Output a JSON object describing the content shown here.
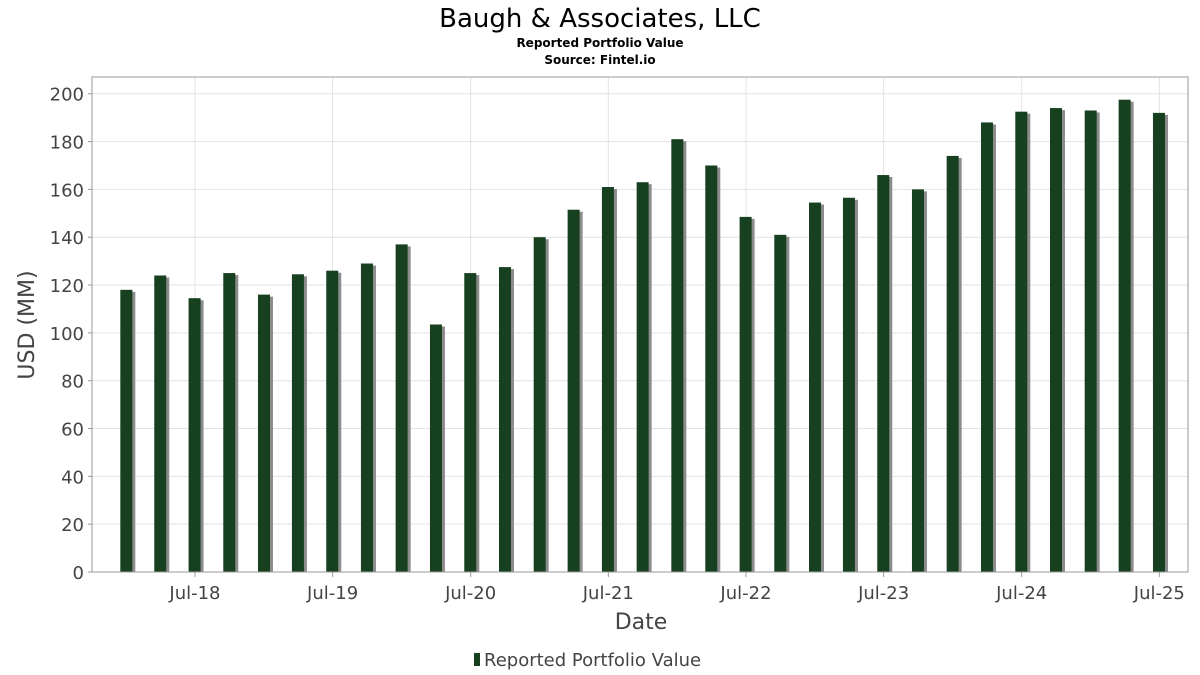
{
  "chart_data": {
    "type": "bar",
    "title": "Baugh & Associates, LLC",
    "subtitle": "Reported Portfolio Value",
    "source": "Source: Fintel.io",
    "xlabel": "Date",
    "ylabel": "USD (MM)",
    "ylim": [
      0,
      207
    ],
    "yticks": [
      0,
      20,
      40,
      60,
      80,
      100,
      120,
      140,
      160,
      180,
      200
    ],
    "xlim": [
      "2017-10-01",
      "2025-09-15"
    ],
    "xticks": [
      {
        "label": "Jul-18",
        "date": "2018-07-01"
      },
      {
        "label": "Jul-19",
        "date": "2019-07-01"
      },
      {
        "label": "Jul-20",
        "date": "2020-07-01"
      },
      {
        "label": "Jul-21",
        "date": "2021-07-01"
      },
      {
        "label": "Jul-22",
        "date": "2022-07-01"
      },
      {
        "label": "Jul-23",
        "date": "2023-07-01"
      },
      {
        "label": "Jul-24",
        "date": "2024-07-01"
      },
      {
        "label": "Jul-25",
        "date": "2025-07-01"
      }
    ],
    "grid": true,
    "legend_position": "bottom",
    "series": [
      {
        "name": "Reported Portfolio Value",
        "color": "#16401f",
        "shadow_color": "#8c8c8c",
        "points": [
          {
            "x": "2017-12-31",
            "y": 118
          },
          {
            "x": "2018-03-31",
            "y": 124
          },
          {
            "x": "2018-06-30",
            "y": 114.5
          },
          {
            "x": "2018-09-30",
            "y": 125
          },
          {
            "x": "2018-12-31",
            "y": 116
          },
          {
            "x": "2019-03-31",
            "y": 124.5
          },
          {
            "x": "2019-06-30",
            "y": 126
          },
          {
            "x": "2019-09-30",
            "y": 129
          },
          {
            "x": "2019-12-31",
            "y": 137
          },
          {
            "x": "2020-03-31",
            "y": 103.5
          },
          {
            "x": "2020-06-30",
            "y": 125
          },
          {
            "x": "2020-09-30",
            "y": 127.5
          },
          {
            "x": "2020-12-31",
            "y": 140
          },
          {
            "x": "2021-03-31",
            "y": 151.5
          },
          {
            "x": "2021-06-30",
            "y": 161
          },
          {
            "x": "2021-09-30",
            "y": 163
          },
          {
            "x": "2021-12-31",
            "y": 181
          },
          {
            "x": "2022-03-31",
            "y": 170
          },
          {
            "x": "2022-06-30",
            "y": 148.5
          },
          {
            "x": "2022-09-30",
            "y": 141
          },
          {
            "x": "2022-12-31",
            "y": 154.5
          },
          {
            "x": "2023-03-31",
            "y": 156.5
          },
          {
            "x": "2023-06-30",
            "y": 166
          },
          {
            "x": "2023-09-30",
            "y": 160
          },
          {
            "x": "2023-12-31",
            "y": 174
          },
          {
            "x": "2024-03-31",
            "y": 188
          },
          {
            "x": "2024-06-30",
            "y": 192.5
          },
          {
            "x": "2024-09-30",
            "y": 194
          },
          {
            "x": "2024-12-31",
            "y": 193
          },
          {
            "x": "2025-03-31",
            "y": 197.5
          },
          {
            "x": "2025-06-30",
            "y": 192
          }
        ]
      }
    ]
  }
}
